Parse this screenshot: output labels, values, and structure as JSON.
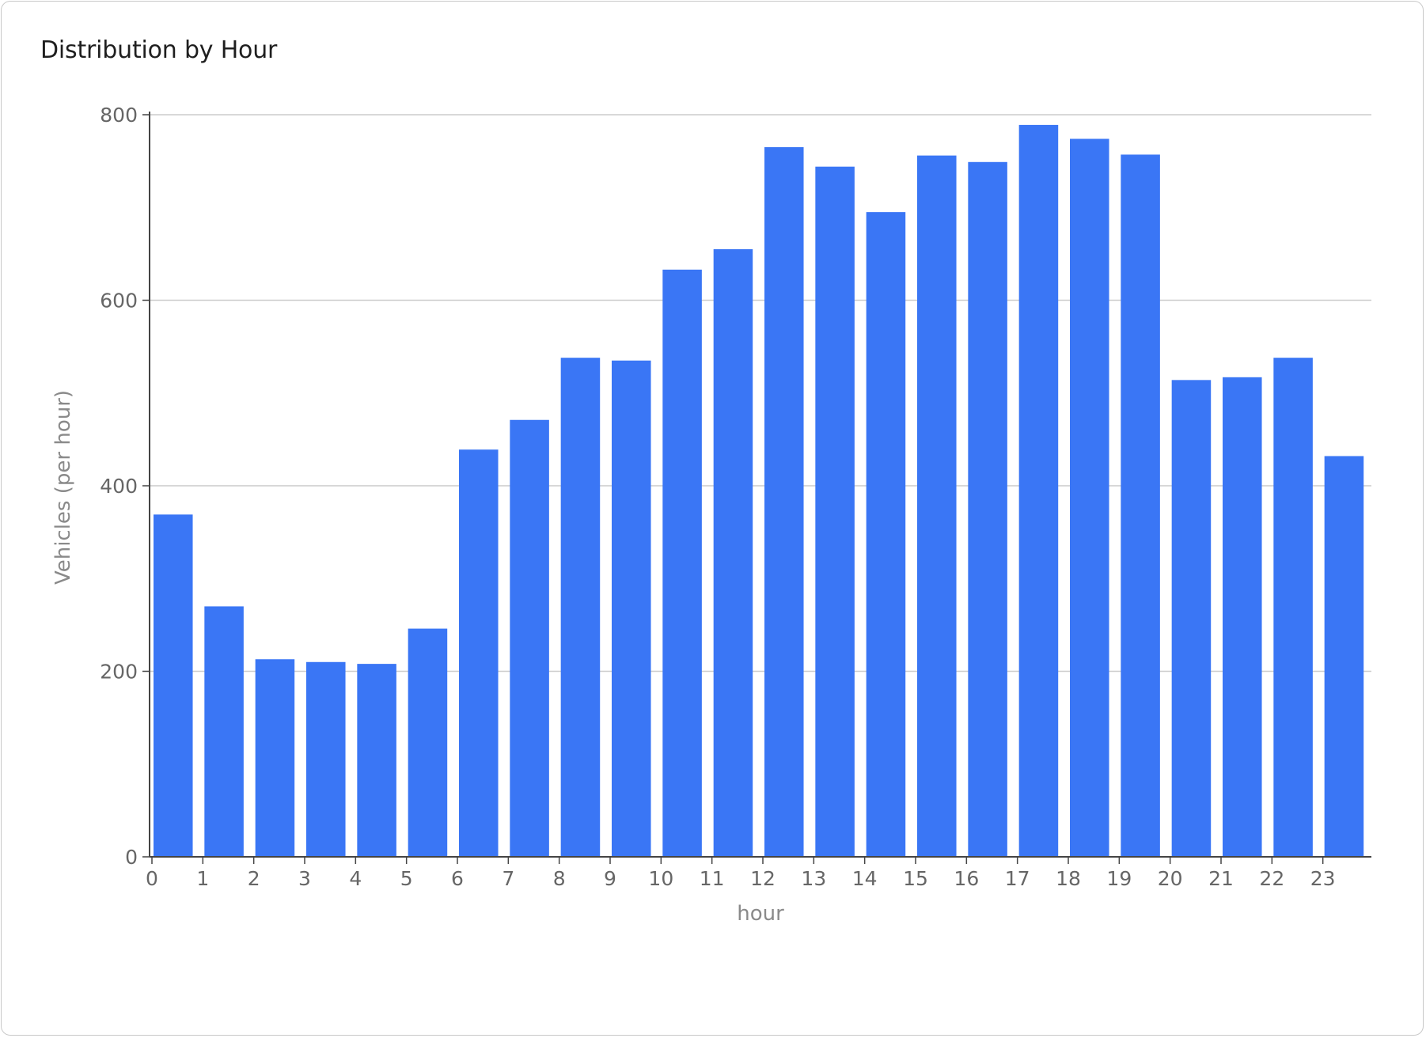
{
  "title": "Distribution by Hour",
  "colors": {
    "bar": "#3a76f5",
    "grid": "#cccccc",
    "axis": "#444444"
  },
  "chart_data": {
    "type": "bar",
    "title": "Distribution by Hour",
    "xlabel": "hour",
    "ylabel": "Vehicles (per hour)",
    "categories": [
      "0",
      "1",
      "2",
      "3",
      "4",
      "5",
      "6",
      "7",
      "8",
      "9",
      "10",
      "11",
      "12",
      "13",
      "14",
      "15",
      "16",
      "17",
      "18",
      "19",
      "20",
      "21",
      "22",
      "23"
    ],
    "values": [
      369,
      270,
      213,
      210,
      208,
      246,
      439,
      471,
      538,
      535,
      633,
      655,
      765,
      744,
      695,
      756,
      749,
      789,
      774,
      757,
      514,
      517,
      538,
      432
    ],
    "ylim": [
      0,
      800
    ],
    "yticks": [
      0,
      200,
      400,
      600,
      800
    ],
    "grid": true,
    "legend": "none"
  }
}
